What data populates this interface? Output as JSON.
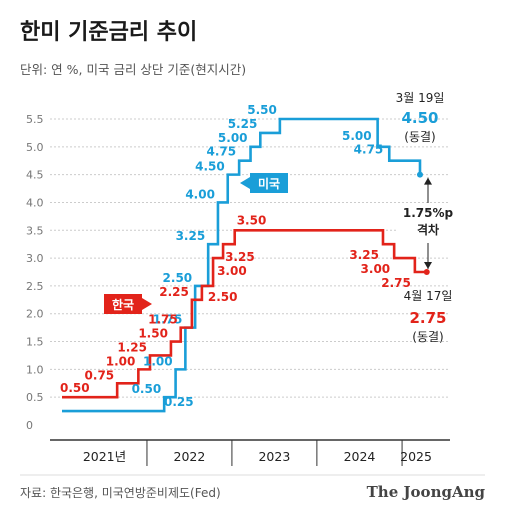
{
  "title": "한미 기준금리 추이",
  "subtitle": "단위: 연 %, 미국 금리 상단 기준(현지시간)",
  "source": "자료: 한국은행, 미국연방준비제도(Fed)",
  "brand": "The JoongAng",
  "colors": {
    "us": "#1a9ed8",
    "kr": "#e2231a",
    "grid": "#cccccc",
    "axis": "#333333"
  },
  "chart_data": {
    "type": "line",
    "step": true,
    "x_labels": [
      "2021년",
      "2022",
      "2023",
      "2024",
      "2025"
    ],
    "y_ticks": [
      "0",
      "0.5",
      "1.0",
      "1.5",
      "2.0",
      "2.5",
      "3.0",
      "3.5",
      "4.0",
      "4.5",
      "5.0",
      "5.5"
    ],
    "ylim": [
      0,
      5.5
    ],
    "grid": true,
    "series": [
      {
        "name": "미국",
        "color": "#1a9ed8",
        "points": [
          {
            "x": "2021-01-01",
            "y": 0.25
          },
          {
            "x": "2022-03-16",
            "y": 0.5,
            "label": "0.50"
          },
          {
            "x": "2022-05-04",
            "y": 1.0,
            "label": "1.00"
          },
          {
            "x": "2022-06-15",
            "y": 1.75,
            "label": "1.75"
          },
          {
            "x": "2022-07-27",
            "y": 2.5,
            "label": "2.50"
          },
          {
            "x": "2022-09-21",
            "y": 3.25,
            "label": "3.25"
          },
          {
            "x": "2022-11-02",
            "y": 4.0,
            "label": "4.00"
          },
          {
            "x": "2022-12-14",
            "y": 4.5,
            "label": "4.50"
          },
          {
            "x": "2023-02-01",
            "y": 4.75,
            "label": "4.75"
          },
          {
            "x": "2023-03-22",
            "y": 5.0,
            "label": "5.00"
          },
          {
            "x": "2023-05-03",
            "y": 5.25,
            "label": "5.25"
          },
          {
            "x": "2023-07-26",
            "y": 5.5,
            "label": "5.50"
          },
          {
            "x": "2024-09-18",
            "y": 5.0,
            "label": "5.00"
          },
          {
            "x": "2024-11-07",
            "y": 4.75,
            "label": "4.75"
          },
          {
            "x": "2025-03-19",
            "y": 4.5
          }
        ],
        "start_label": "0.25"
      },
      {
        "name": "한국",
        "color": "#e2231a",
        "points": [
          {
            "x": "2021-01-01",
            "y": 0.5
          },
          {
            "x": "2021-08-26",
            "y": 0.75,
            "label": "0.75"
          },
          {
            "x": "2021-11-25",
            "y": 1.0,
            "label": "1.00"
          },
          {
            "x": "2022-01-14",
            "y": 1.25,
            "label": "1.25"
          },
          {
            "x": "2022-04-14",
            "y": 1.5,
            "label": "1.50"
          },
          {
            "x": "2022-05-26",
            "y": 1.75,
            "label": "1.75"
          },
          {
            "x": "2022-07-13",
            "y": 2.25,
            "label": "2.25"
          },
          {
            "x": "2022-08-25",
            "y": 2.5,
            "label": "2.50"
          },
          {
            "x": "2022-10-12",
            "y": 3.0,
            "label": "3.00"
          },
          {
            "x": "2022-11-24",
            "y": 3.25,
            "label": "3.25"
          },
          {
            "x": "2023-01-13",
            "y": 3.5,
            "label": "3.50"
          },
          {
            "x": "2024-10-11",
            "y": 3.25,
            "label": "3.25"
          },
          {
            "x": "2024-11-28",
            "y": 3.0,
            "label": "3.00"
          },
          {
            "x": "2025-02-25",
            "y": 2.75,
            "label": "2.75"
          },
          {
            "x": "2025-04-17",
            "y": 2.75
          }
        ],
        "start_label": "0.50"
      }
    ],
    "annotations": {
      "us_date": "3월 19일",
      "us_value": "4.50",
      "us_status": "(동결)",
      "kr_date": "4월 17일",
      "kr_value": "2.75",
      "kr_status": "(동결)",
      "gap": "1.75%p",
      "gap_label": "격차",
      "us_tag": "미국",
      "kr_tag": "한국"
    }
  }
}
